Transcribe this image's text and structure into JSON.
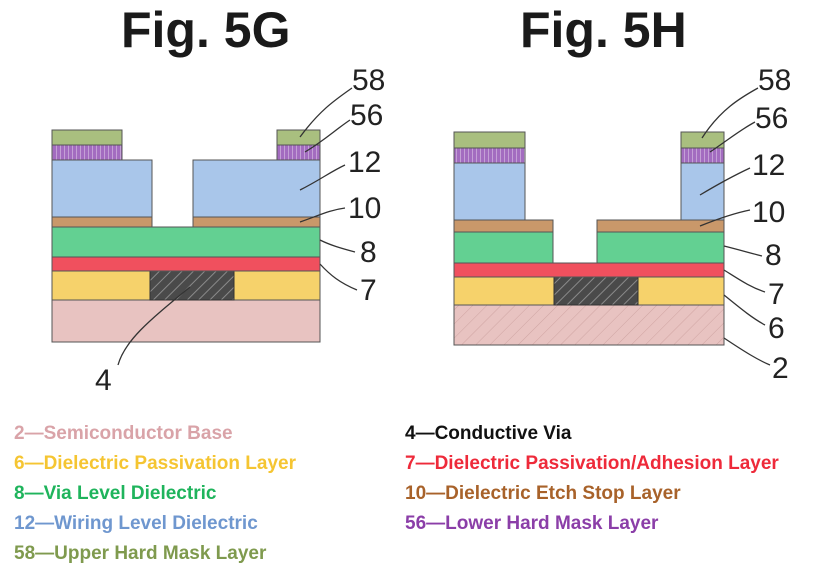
{
  "figures": [
    {
      "title": "Fig. 5G",
      "labels": [
        "58",
        "56",
        "12",
        "10",
        "8",
        "7",
        "4"
      ]
    },
    {
      "title": "Fig. 5H",
      "labels": [
        "58",
        "56",
        "12",
        "10",
        "8",
        "7",
        "6",
        "2"
      ]
    }
  ],
  "legend": [
    {
      "num": "2",
      "sep": "—",
      "text": "Semiconductor Base",
      "color": "#d9a3a8"
    },
    {
      "num": "4",
      "sep": "—",
      "text": "Conductive Via",
      "color": "#111111"
    },
    {
      "num": "6",
      "sep": "—",
      "text": "Dielectric Passivation Layer",
      "color": "#f5c532"
    },
    {
      "num": "7",
      "sep": "—",
      "text": "Dielectric Passivation/Adhesion Layer",
      "color": "#ee2a3a"
    },
    {
      "num": "8",
      "sep": "—",
      "text": "Via Level Dielectric",
      "color": "#1fb45c"
    },
    {
      "num": "10",
      "sep": "—",
      "text": "Dielectric Etch Stop Layer",
      "color": "#a8622a"
    },
    {
      "num": "12",
      "sep": "—",
      "text": "Wiring Level Dielectric",
      "color": "#6f97cf"
    },
    {
      "num": "56",
      "sep": "—",
      "text": "Lower Hard Mask Layer",
      "color": "#8b3ea8"
    },
    {
      "num": "58",
      "sep": "—",
      "text": "Upper Hard Mask Layer",
      "color": "#7f9a4e"
    }
  ],
  "layer_colors": {
    "base": "#e8c3c1",
    "via": "#4a4a4a",
    "passivation": "#f6d26b",
    "adhesion": "#f0505e",
    "via_dielectric": "#63d092",
    "etch_stop": "#c9986a",
    "wiring_dielectric": "#a9c6ea",
    "lower_mask": "#a36cc0",
    "upper_mask": "#a9bf7f"
  }
}
